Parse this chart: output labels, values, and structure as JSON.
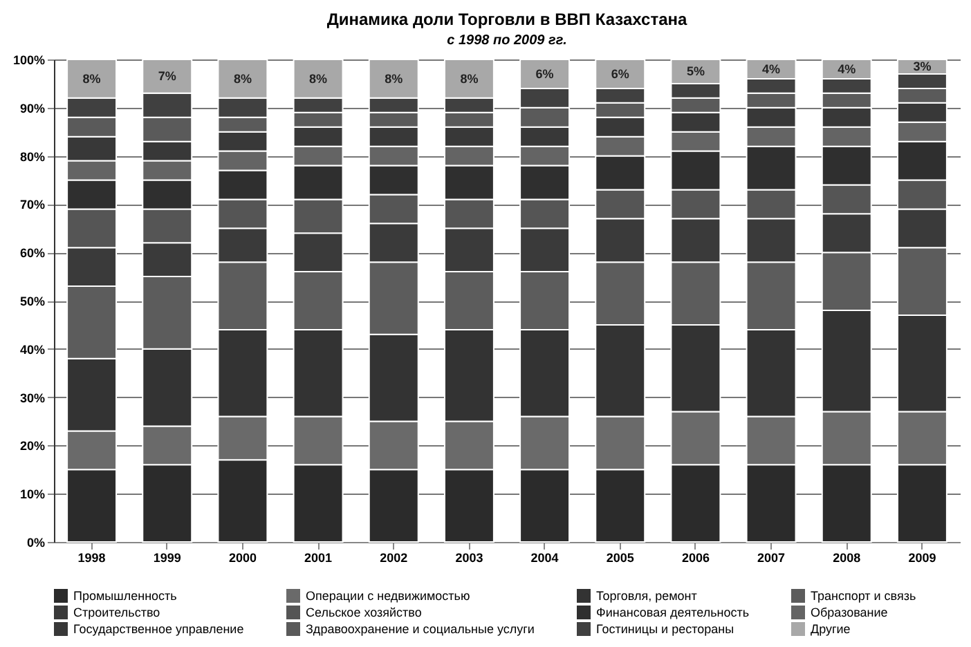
{
  "chart_data": {
    "type": "bar",
    "stacked": true,
    "title": "Динамика доли Торговли в ВВП Казахстана",
    "subtitle": "с 1998 по 2009 гг.",
    "categories": [
      "1998",
      "1999",
      "2000",
      "2001",
      "2002",
      "2003",
      "2004",
      "2005",
      "2006",
      "2007",
      "2008",
      "2009"
    ],
    "ylim": [
      0,
      100
    ],
    "yticks": [
      {
        "value": 0,
        "label": "0%"
      },
      {
        "value": 10,
        "label": "10%"
      },
      {
        "value": 20,
        "label": "20%"
      },
      {
        "value": 30,
        "label": "30%"
      },
      {
        "value": 40,
        "label": "40%"
      },
      {
        "value": 50,
        "label": "50%"
      },
      {
        "value": 60,
        "label": "60%"
      },
      {
        "value": 70,
        "label": "70%"
      },
      {
        "value": 80,
        "label": "80%"
      },
      {
        "value": 90,
        "label": "90%"
      },
      {
        "value": 100,
        "label": "100%"
      }
    ],
    "grid": "y",
    "legend": "bottom",
    "series": [
      {
        "name": "Промышленность",
        "color": "#2b2b2b",
        "values": [
          15,
          16,
          17,
          16,
          15,
          15,
          15,
          15,
          16,
          16,
          16,
          16
        ]
      },
      {
        "name": "Операции с недвижимостью",
        "color": "#6a6a6a",
        "values": [
          8,
          8,
          9,
          10,
          10,
          10,
          11,
          11,
          11,
          10,
          11,
          11
        ]
      },
      {
        "name": "Торговля, ремонт",
        "color": "#333333",
        "values": [
          15,
          16,
          18,
          18,
          18,
          19,
          18,
          19,
          18,
          18,
          21,
          20
        ]
      },
      {
        "name": "Транспорт и связь",
        "color": "#5c5c5c",
        "values": [
          15,
          15,
          14,
          12,
          15,
          12,
          12,
          13,
          13,
          14,
          12,
          14
        ]
      },
      {
        "name": "Строительство",
        "color": "#3a3a3a",
        "values": [
          8,
          7,
          7,
          8,
          8,
          9,
          9,
          9,
          9,
          9,
          8,
          8
        ]
      },
      {
        "name": "Сельское хозяйство",
        "color": "#555555",
        "values": [
          8,
          7,
          6,
          7,
          6,
          6,
          6,
          6,
          6,
          6,
          6,
          6
        ]
      },
      {
        "name": "Финансовая деятельность",
        "color": "#2f2f2f",
        "values": [
          6,
          6,
          6,
          7,
          6,
          7,
          7,
          7,
          8,
          9,
          8,
          8
        ]
      },
      {
        "name": "Образование",
        "color": "#646464",
        "values": [
          4,
          4,
          4,
          4,
          4,
          4,
          4,
          4,
          4,
          4,
          4,
          4
        ]
      },
      {
        "name": "Государственное управление",
        "color": "#383838",
        "values": [
          5,
          4,
          4,
          4,
          4,
          4,
          4,
          4,
          4,
          4,
          4,
          4
        ]
      },
      {
        "name": "Здравоохранение и социальные услуги",
        "color": "#5a5a5a",
        "values": [
          4,
          5,
          3,
          3,
          3,
          3,
          4,
          3,
          3,
          3,
          3,
          3
        ]
      },
      {
        "name": "Гостиницы и рестораны",
        "color": "#404040",
        "values": [
          4,
          5,
          4,
          3,
          3,
          3,
          4,
          3,
          3,
          3,
          3,
          3
        ]
      },
      {
        "name": "Другие",
        "color": "#a8a8a8",
        "values": [
          8,
          7,
          8,
          8,
          8,
          8,
          6,
          6,
          5,
          4,
          4,
          3
        ],
        "value_labels": [
          "8%",
          "7%",
          "8%",
          "8%",
          "8%",
          "8%",
          "6%",
          "6%",
          "5%",
          "4%",
          "4%",
          "3%"
        ]
      }
    ]
  }
}
